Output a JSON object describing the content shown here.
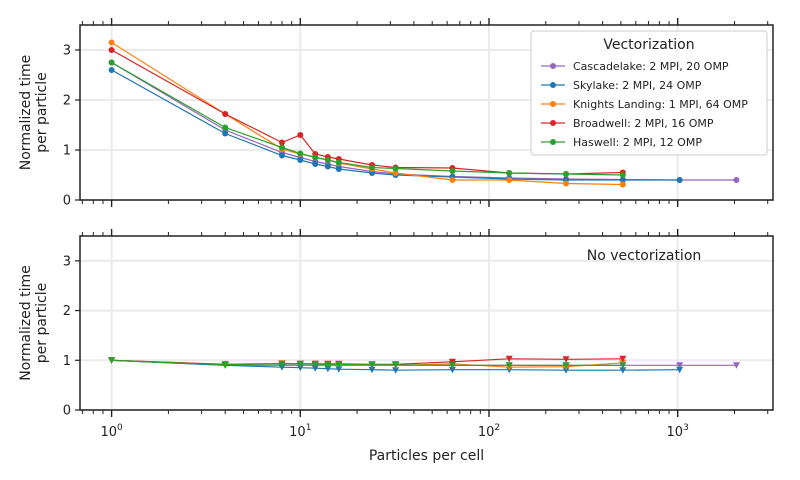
{
  "chart_data": [
    {
      "type": "line",
      "annotation": "",
      "legend_title": "Vectorization",
      "legend_placement": "top-right",
      "xlabel": "",
      "ylabel": "Normalized time per particle",
      "ylabel_lines": [
        "Normalized time",
        "per particle"
      ],
      "xscale": "log",
      "xlim": [
        0.68,
        3200
      ],
      "ylim": [
        0,
        3.5
      ],
      "yticks": [
        0,
        1,
        2,
        3
      ],
      "marker": "circle",
      "grid": true,
      "series": [
        {
          "name": "Cascadelake: 2 MPI, 20 OMP",
          "color": "#9467bd",
          "x": [
            1,
            4,
            8,
            10,
            12,
            14,
            16,
            24,
            32,
            64,
            128,
            256,
            512,
            1024,
            2048
          ],
          "y": [
            2.75,
            1.4,
            0.95,
            0.85,
            0.77,
            0.72,
            0.67,
            0.57,
            0.52,
            0.47,
            0.44,
            0.42,
            0.41,
            0.4,
            0.4
          ]
        },
        {
          "name": "Skylake: 2 MPI, 24 OMP",
          "color": "#1f77b4",
          "x": [
            1,
            4,
            8,
            10,
            12,
            14,
            16,
            24,
            32,
            64,
            128,
            256,
            512,
            1024
          ],
          "y": [
            2.6,
            1.33,
            0.89,
            0.8,
            0.72,
            0.67,
            0.62,
            0.54,
            0.5,
            0.46,
            0.42,
            0.4,
            0.4,
            0.4
          ]
        },
        {
          "name": "Knights Landing: 1 MPI, 64 OMP",
          "color": "#ff7f0e",
          "x": [
            1,
            4,
            8,
            10,
            12,
            14,
            16,
            24,
            32,
            64,
            128,
            256,
            512
          ],
          "y": [
            3.15,
            1.72,
            1.02,
            0.92,
            0.86,
            0.8,
            0.74,
            0.62,
            0.54,
            0.4,
            0.4,
            0.33,
            0.31
          ]
        },
        {
          "name": "Broadwell: 2 MPI, 16 OMP",
          "color": "#d62728",
          "x": [
            1,
            4,
            8,
            10,
            12,
            14,
            16,
            24,
            32,
            64,
            128,
            256,
            512
          ],
          "y": [
            3.0,
            1.72,
            1.15,
            1.3,
            0.92,
            0.86,
            0.82,
            0.7,
            0.65,
            0.64,
            0.54,
            0.52,
            0.55
          ]
        },
        {
          "name": "Haswell: 2 MPI, 12 OMP",
          "color": "#2ca02c",
          "x": [
            1,
            4,
            8,
            10,
            12,
            14,
            16,
            24,
            32,
            64,
            128,
            256,
            512
          ],
          "y": [
            2.75,
            1.45,
            1.05,
            0.93,
            0.85,
            0.8,
            0.75,
            0.65,
            0.63,
            0.58,
            0.54,
            0.52,
            0.5
          ]
        }
      ]
    },
    {
      "type": "line",
      "annotation": "No vectorization",
      "xlabel": "Particles per cell",
      "ylabel": "Normalized time per particle",
      "ylabel_lines": [
        "Normalized time",
        "per particle"
      ],
      "xscale": "log",
      "xlim": [
        0.68,
        3200
      ],
      "ylim": [
        0,
        3.5
      ],
      "yticks": [
        0,
        1,
        2,
        3
      ],
      "xticks": [
        {
          "value": 1,
          "base": "10",
          "exp": "0"
        },
        {
          "value": 10,
          "base": "10",
          "exp": "1"
        },
        {
          "value": 100,
          "base": "10",
          "exp": "2"
        },
        {
          "value": 1000,
          "base": "10",
          "exp": "3"
        }
      ],
      "marker": "triangle-down",
      "grid": true,
      "series": [
        {
          "name": "Cascadelake: 2 MPI, 20 OMP",
          "color": "#9467bd",
          "x": [
            1,
            4,
            8,
            10,
            12,
            14,
            16,
            24,
            32,
            64,
            128,
            256,
            512,
            1024,
            2048
          ],
          "y": [
            1.0,
            0.9,
            0.9,
            0.9,
            0.9,
            0.9,
            0.9,
            0.9,
            0.9,
            0.9,
            0.9,
            0.9,
            0.9,
            0.9,
            0.9
          ]
        },
        {
          "name": "Skylake: 2 MPI, 24 OMP",
          "color": "#1f77b4",
          "x": [
            1,
            4,
            8,
            10,
            12,
            14,
            16,
            24,
            32,
            64,
            128,
            256,
            512,
            1024
          ],
          "y": [
            1.0,
            0.9,
            0.86,
            0.85,
            0.84,
            0.83,
            0.82,
            0.81,
            0.8,
            0.81,
            0.81,
            0.8,
            0.8,
            0.81
          ]
        },
        {
          "name": "Knights Landing: 1 MPI, 64 OMP",
          "color": "#ff7f0e",
          "x": [
            1,
            4,
            8,
            10,
            12,
            14,
            16,
            24,
            32,
            64,
            128,
            256,
            512
          ],
          "y": [
            1.0,
            0.92,
            0.94,
            0.93,
            0.93,
            0.92,
            0.92,
            0.91,
            0.9,
            0.93,
            0.86,
            0.87,
            0.95
          ]
        },
        {
          "name": "Broadwell: 2 MPI, 16 OMP",
          "color": "#d62728",
          "x": [
            1,
            4,
            8,
            10,
            12,
            14,
            16,
            24,
            32,
            64,
            128,
            256,
            512
          ],
          "y": [
            1.0,
            0.92,
            0.93,
            0.93,
            0.93,
            0.93,
            0.93,
            0.92,
            0.92,
            0.97,
            1.03,
            1.02,
            1.03
          ]
        },
        {
          "name": "Haswell: 2 MPI, 12 OMP",
          "color": "#2ca02c",
          "x": [
            1,
            4,
            8,
            10,
            12,
            14,
            16,
            24,
            32,
            64,
            128,
            256,
            512
          ],
          "y": [
            1.0,
            0.91,
            0.93,
            0.93,
            0.92,
            0.92,
            0.92,
            0.91,
            0.91,
            0.9,
            0.9,
            0.9,
            0.9
          ]
        }
      ]
    }
  ]
}
